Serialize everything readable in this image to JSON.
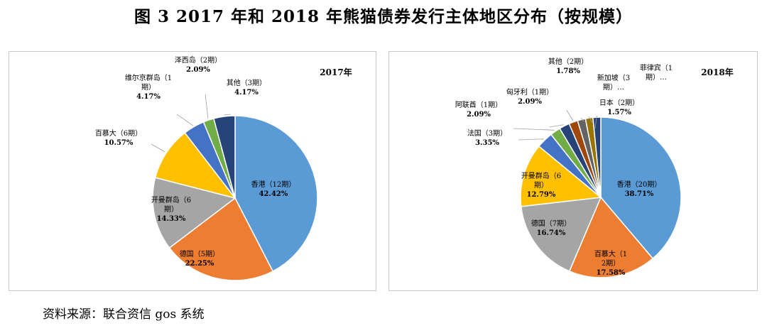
{
  "figure_title": "图 3   2017 年和 2018 年熊猫债券发行主体地区分布（按规模）",
  "source": "资料来源：联合资信 gos 系统",
  "colors": {
    "blue": "#5b9bd5",
    "orange": "#ed7d31",
    "gray": "#a5a5a5",
    "gold": "#ffc000",
    "darkblue": "#4472c4",
    "green": "#70ad47",
    "navy": "#264478",
    "brown": "#9e480e",
    "olive": "#997300",
    "slate": "#43682b"
  },
  "chart_data": [
    {
      "type": "pie",
      "title": "2017年",
      "slices": [
        {
          "label": "香港（12期）",
          "value": 42.42,
          "pct": "42.42%",
          "color": "#5b9bd5"
        },
        {
          "label": "德国（5期）",
          "value": 22.25,
          "pct": "22.25%",
          "color": "#ed7d31"
        },
        {
          "label": "开曼群岛（6期）",
          "value": 14.33,
          "pct": "14.33%",
          "color": "#a5a5a5"
        },
        {
          "label": "百慕大（6期）",
          "value": 10.57,
          "pct": "10.57%",
          "color": "#ffc000"
        },
        {
          "label": "维尔京群岛（1期）",
          "value": 4.17,
          "pct": "4.17%",
          "color": "#4472c4"
        },
        {
          "label": "泽西岛（2期）",
          "value": 2.09,
          "pct": "2.09%",
          "color": "#70ad47"
        },
        {
          "label": "其他（3期）",
          "value": 4.17,
          "pct": "4.17%",
          "color": "#264478"
        }
      ]
    },
    {
      "type": "pie",
      "title": "2018年",
      "slices": [
        {
          "label": "香港（20期）",
          "value": 38.71,
          "pct": "38.71%",
          "color": "#5b9bd5"
        },
        {
          "label": "百慕大（12期）",
          "value": 17.58,
          "pct": "17.58%",
          "color": "#ed7d31"
        },
        {
          "label": "德国（7期）",
          "value": 16.74,
          "pct": "16.74%",
          "color": "#a5a5a5"
        },
        {
          "label": "开曼群岛（6期）",
          "value": 12.79,
          "pct": "12.79%",
          "color": "#ffc000"
        },
        {
          "label": "法国（3期）",
          "value": 3.35,
          "pct": "3.35%",
          "color": "#4472c4"
        },
        {
          "label": "阿联酋（1期）",
          "value": 2.09,
          "pct": "2.09%",
          "color": "#70ad47"
        },
        {
          "label": "匈牙利（1期）",
          "value": 2.09,
          "pct": "2.09%",
          "color": "#264478"
        },
        {
          "label": "其他（2期）",
          "value": 1.78,
          "pct": "1.78%",
          "color": "#9e480e"
        },
        {
          "label": "新加坡（3期）…",
          "value": 1.6,
          "pct": "",
          "color": "#636363"
        },
        {
          "label": "菲律宾（1期）…",
          "value": 1.5,
          "pct": "",
          "color": "#997300"
        },
        {
          "label": "日本（2期）",
          "value": 1.57,
          "pct": "1.57%",
          "color": "#264478"
        }
      ]
    }
  ]
}
